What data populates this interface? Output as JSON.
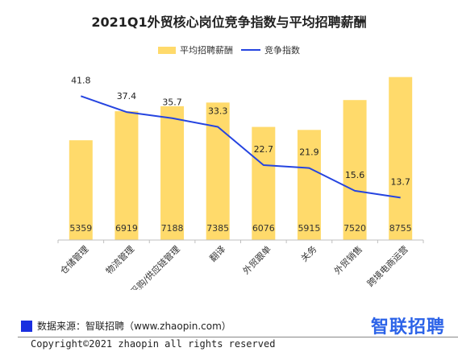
{
  "colors": {
    "bar": "#FFDA6B",
    "line": "#2544E0",
    "logo": "#2C63E8",
    "source_square": "#1A2FE0"
  },
  "chart_data": {
    "type": "bar",
    "title": "2021Q1外贸核心岗位竞争指数与平均招聘薪酬",
    "categories": [
      "仓储管理",
      "物流管理",
      "采购/供应链管理",
      "翻译",
      "外贸跟单",
      "关务",
      "外贸销售",
      "跨境电商运营"
    ],
    "series": [
      {
        "name": "平均招聘薪酬",
        "type": "bar",
        "values": [
          5359,
          6919,
          7188,
          7385,
          6076,
          5915,
          7520,
          8755
        ]
      },
      {
        "name": "竞争指数",
        "type": "line",
        "values": [
          41.8,
          37.4,
          35.7,
          33.3,
          22.7,
          21.9,
          15.6,
          13.7
        ]
      }
    ],
    "legend_position": "top-center",
    "grid": false
  },
  "footer": {
    "source": "数据来源：智联招聘（www.zhaopin.com）",
    "logo": "智联招聘",
    "copyright": "Copyright©2021 zhaopin all rights reserved"
  }
}
